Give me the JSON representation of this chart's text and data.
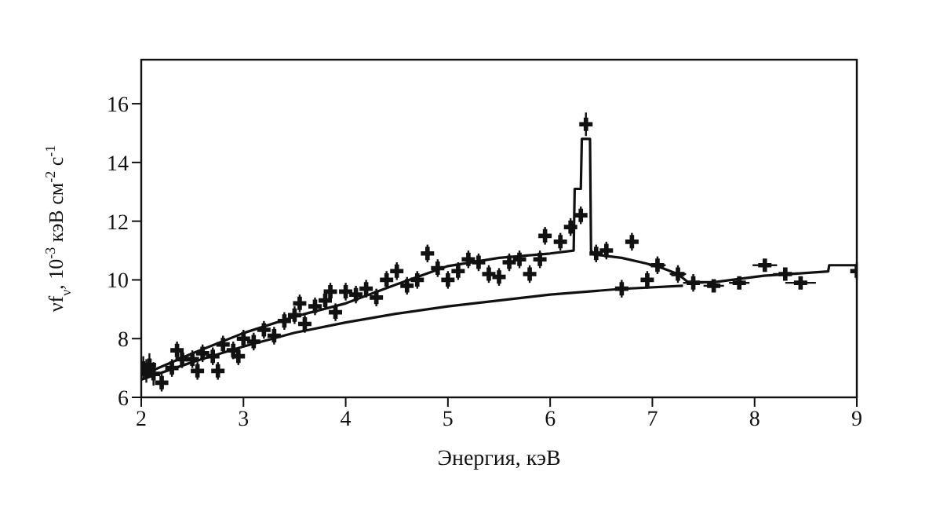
{
  "chart_data": {
    "type": "line",
    "xlabel": "Энергия, кэВ",
    "ylabel": "νf$_{ν}$, 10$^{-3}$ кэВ см$^{-2}$ с$^{-1}$",
    "xlim": [
      2,
      9
    ],
    "xticks": [
      2,
      3,
      4,
      5,
      6,
      7,
      8,
      9
    ],
    "ylim": [
      6,
      17.5
    ],
    "yticks": [
      6,
      8,
      10,
      12,
      14,
      16
    ],
    "grid": false,
    "legend": false,
    "line_style": "solid",
    "series": [
      {
        "color": "#111111",
        "marker": "none",
        "x": [
          2,
          2.5,
          3,
          3.5,
          4,
          4.5,
          5,
          5.5,
          6,
          6.23,
          6.24,
          6.3,
          6.31,
          6.39,
          6.4,
          6.43,
          6.7,
          6.94,
          7.1,
          7.25,
          7.35,
          7.6,
          8.09,
          8.72,
          8.73,
          9
        ],
        "values": [
          6.75,
          7.5,
          8.19,
          8.75,
          9.2,
          9.85,
          10.47,
          10.75,
          10.9,
          11.0,
          13.1,
          13.1,
          14.8,
          14.8,
          11.0,
          10.87,
          10.75,
          10.56,
          10.4,
          10.2,
          9.92,
          9.92,
          10.14,
          10.29,
          10.5,
          10.5
        ]
      },
      {
        "color": "#111111",
        "marker": "none",
        "x": [
          2,
          2.5,
          3,
          3.5,
          4,
          4.5,
          5,
          5.5,
          6,
          6.68,
          7.3
        ],
        "values": [
          6.6,
          7.2,
          7.73,
          8.2,
          8.55,
          8.85,
          9.1,
          9.3,
          9.5,
          9.69,
          9.8
        ]
      },
      {
        "type": "scatter",
        "color": "#111111",
        "marker": "cross",
        "x": [
          2.02,
          2.05,
          2.08,
          2.12,
          2.2,
          2.3,
          2.35,
          2.4,
          2.5,
          2.55,
          2.6,
          2.7,
          2.75,
          2.8,
          2.9,
          2.95,
          3.0,
          3.1,
          3.2,
          3.3,
          3.4,
          3.5,
          3.55,
          3.6,
          3.7,
          3.8,
          3.85,
          3.9,
          4.0,
          4.1,
          4.2,
          4.3,
          4.4,
          4.5,
          4.6,
          4.7,
          4.8,
          4.9,
          5.0,
          5.1,
          5.2,
          5.3,
          5.4,
          5.5,
          5.6,
          5.7,
          5.8,
          5.9,
          5.95,
          6.1,
          6.2,
          6.3,
          6.35,
          6.45,
          6.55,
          6.7,
          6.8,
          6.95,
          7.05,
          7.25,
          7.4,
          7.6,
          7.85,
          8.1,
          8.3,
          8.45,
          9.0
        ],
        "values": [
          7.0,
          6.9,
          7.1,
          6.8,
          6.5,
          7.0,
          7.6,
          7.3,
          7.3,
          6.9,
          7.5,
          7.4,
          6.9,
          7.8,
          7.6,
          7.4,
          8.0,
          7.9,
          8.3,
          8.1,
          8.6,
          8.8,
          9.2,
          8.5,
          9.1,
          9.3,
          9.6,
          8.9,
          9.6,
          9.5,
          9.7,
          9.4,
          10.0,
          10.3,
          9.8,
          10.0,
          10.9,
          10.4,
          10.0,
          10.3,
          10.7,
          10.6,
          10.2,
          10.1,
          10.6,
          10.7,
          10.2,
          10.7,
          11.5,
          11.3,
          11.8,
          12.2,
          15.3,
          10.9,
          11.0,
          9.7,
          11.3,
          10.0,
          10.5,
          10.2,
          9.9,
          9.8,
          9.9,
          10.5,
          10.2,
          9.9,
          10.3
        ],
        "errors": [
          0.4,
          0.4,
          0.4,
          0.4,
          0.3,
          0.3,
          0.3,
          0.3,
          0.3,
          0.3,
          0.3,
          0.3,
          0.3,
          0.3,
          0.3,
          0.3,
          0.3,
          0.3,
          0.3,
          0.3,
          0.3,
          0.3,
          0.3,
          0.3,
          0.3,
          0.3,
          0.3,
          0.3,
          0.3,
          0.3,
          0.3,
          0.3,
          0.3,
          0.3,
          0.3,
          0.3,
          0.3,
          0.3,
          0.3,
          0.3,
          0.3,
          0.3,
          0.3,
          0.3,
          0.3,
          0.3,
          0.3,
          0.3,
          0.3,
          0.3,
          0.3,
          0.3,
          0.4,
          0.3,
          0.3,
          0.3,
          0.3,
          0.3,
          0.3,
          0.3,
          0.3,
          0.2,
          0.2,
          0.2,
          0.2,
          0.2,
          0.3
        ],
        "xerrors": [
          null,
          null,
          null,
          null,
          null,
          null,
          null,
          null,
          null,
          null,
          null,
          null,
          null,
          null,
          null,
          null,
          null,
          null,
          null,
          null,
          null,
          null,
          null,
          null,
          null,
          null,
          null,
          null,
          null,
          null,
          null,
          null,
          null,
          null,
          null,
          null,
          null,
          null,
          null,
          null,
          null,
          null,
          null,
          null,
          null,
          null,
          null,
          null,
          null,
          null,
          null,
          null,
          null,
          null,
          null,
          null,
          null,
          0.05,
          0.08,
          0.08,
          0.1,
          0.1,
          0.1,
          0.12,
          0.12,
          0.15,
          null
        ]
      }
    ]
  }
}
